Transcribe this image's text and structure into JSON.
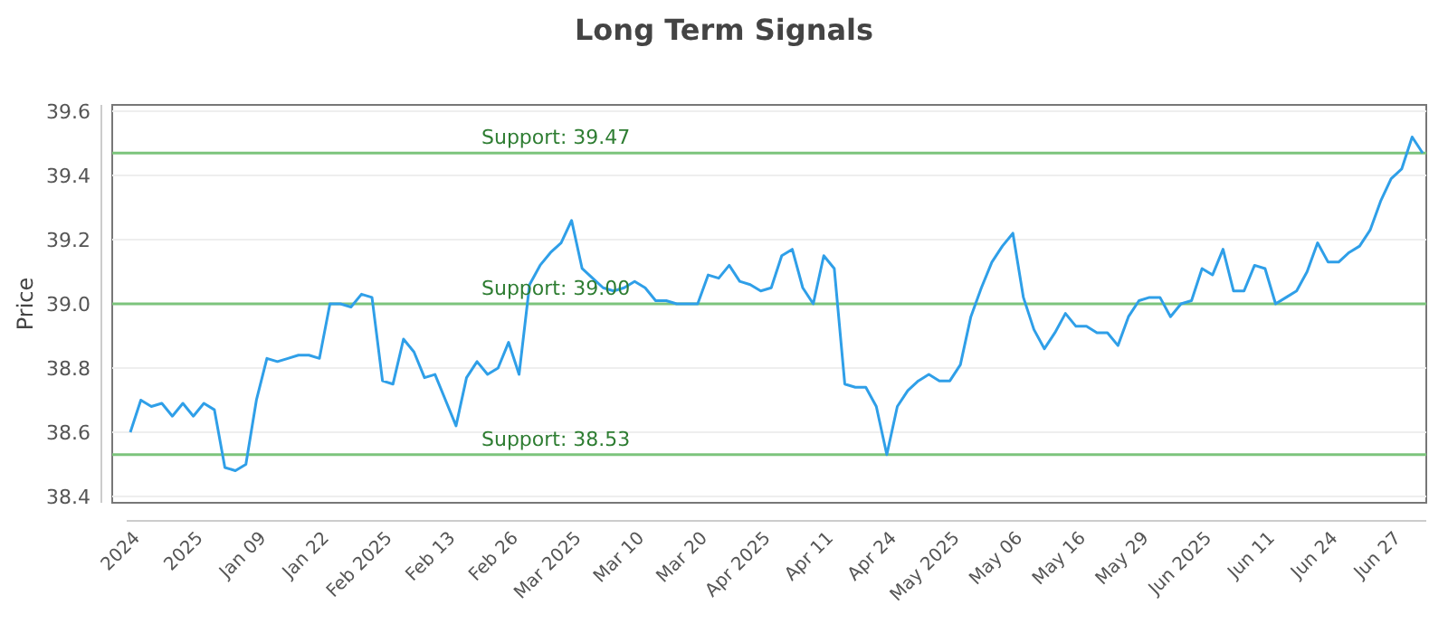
{
  "chart_data": {
    "type": "line",
    "title": "Long Term Signals",
    "ylabel": "Price",
    "categories": [
      null,
      "2024",
      null,
      null,
      null,
      null,
      null,
      "2025",
      null,
      null,
      null,
      null,
      null,
      "Jan 09",
      null,
      null,
      null,
      null,
      null,
      "Jan 22",
      null,
      null,
      null,
      null,
      null,
      "Feb 2025",
      null,
      null,
      null,
      null,
      null,
      "Feb 13",
      null,
      null,
      null,
      null,
      null,
      "Feb 26",
      null,
      null,
      null,
      null,
      null,
      "Mar 2025",
      null,
      null,
      null,
      null,
      null,
      "Mar 10",
      null,
      null,
      null,
      null,
      null,
      "Mar 20",
      null,
      null,
      null,
      null,
      null,
      "Apr 2025",
      null,
      null,
      null,
      null,
      null,
      "Apr 11",
      null,
      null,
      null,
      null,
      null,
      "Apr 24",
      null,
      null,
      null,
      null,
      null,
      "May 2025",
      null,
      null,
      null,
      null,
      null,
      "May 06",
      null,
      null,
      null,
      null,
      null,
      "May 16",
      null,
      null,
      null,
      null,
      null,
      "May 29",
      null,
      null,
      null,
      null,
      null,
      "Jun 2025",
      null,
      null,
      null,
      null,
      null,
      "Jun 11",
      null,
      null,
      null,
      null,
      null,
      "Jun 24",
      null,
      null,
      null,
      null,
      null,
      "Jun 27",
      null,
      null
    ],
    "series": [
      {
        "color": "#2f9fe8",
        "values": [
          38.6,
          38.7,
          38.68,
          38.69,
          38.65,
          38.69,
          38.65,
          38.69,
          38.67,
          38.49,
          38.48,
          38.5,
          38.7,
          38.83,
          38.82,
          38.83,
          38.84,
          38.84,
          38.83,
          39.0,
          39.0,
          38.99,
          39.03,
          39.02,
          38.76,
          38.75,
          38.89,
          38.85,
          38.77,
          38.78,
          38.7,
          38.62,
          38.77,
          38.82,
          38.78,
          38.8,
          38.88,
          38.78,
          39.06,
          39.12,
          39.16,
          39.19,
          39.26,
          39.11,
          39.08,
          39.05,
          39.04,
          39.05,
          39.07,
          39.05,
          39.01,
          39.01,
          39.0,
          39.0,
          39.0,
          39.09,
          39.08,
          39.12,
          39.07,
          39.06,
          39.04,
          39.05,
          39.15,
          39.17,
          39.05,
          39.0,
          39.15,
          39.11,
          38.75,
          38.74,
          38.74,
          38.68,
          38.53,
          38.68,
          38.73,
          38.76,
          38.78,
          38.76,
          38.76,
          38.81,
          38.96,
          39.05,
          39.13,
          39.18,
          39.22,
          39.02,
          38.92,
          38.86,
          38.91,
          38.97,
          38.93,
          38.93,
          38.91,
          38.91,
          38.87,
          38.96,
          39.01,
          39.02,
          39.02,
          38.96,
          39.0,
          39.01,
          39.11,
          39.09,
          39.17,
          39.04,
          39.04,
          39.12,
          39.11,
          39.0,
          39.02,
          39.04,
          39.1,
          39.19,
          39.13,
          39.13,
          39.16,
          39.18,
          39.23,
          39.32,
          39.39,
          39.42,
          39.52,
          39.47
        ]
      }
    ],
    "ylim": [
      38.38,
      39.62
    ],
    "yticks": [
      {
        "value": 38.4,
        "label": "38.4"
      },
      {
        "value": 38.6,
        "label": "38.6"
      },
      {
        "value": 38.8,
        "label": "38.8"
      },
      {
        "value": 39.0,
        "label": "39.0"
      },
      {
        "value": 39.2,
        "label": "39.2"
      },
      {
        "value": 39.4,
        "label": "39.4"
      },
      {
        "value": 39.6,
        "label": "39.6"
      }
    ],
    "grid": "y",
    "marker": "none",
    "line_style": "solid",
    "ref_lines": [
      {
        "axis": "y",
        "value": 39.47,
        "label": "Support: 39.47",
        "color": "#7cc47c"
      },
      {
        "axis": "y",
        "value": 39.0,
        "label": "Support: 39.00",
        "color": "#7cc47c"
      },
      {
        "axis": "y",
        "value": 38.53,
        "label": "Support: 38.53",
        "color": "#7cc47c"
      }
    ]
  }
}
